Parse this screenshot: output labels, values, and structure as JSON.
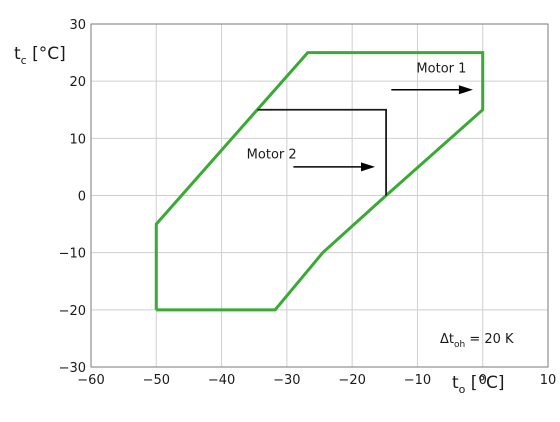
{
  "chart_data": {
    "type": "line",
    "xlim": [
      -60,
      10
    ],
    "ylim": [
      -30,
      30
    ],
    "x_ticks": [
      -60,
      -50,
      -40,
      -30,
      -20,
      -10,
      0,
      10
    ],
    "y_ticks": [
      -30,
      -20,
      -10,
      0,
      10,
      20,
      30
    ],
    "x_tick_labels": [
      "−60",
      "−50",
      "−40",
      "−30",
      "−20",
      "−10",
      "0",
      "10"
    ],
    "y_tick_labels": [
      "−30",
      "−20",
      "−10",
      "0",
      "10",
      "20",
      "30"
    ],
    "xlabel": {
      "symbol": "t",
      "sub": "o",
      "unit": " [°C]"
    },
    "ylabel": {
      "symbol": "t",
      "sub": "c",
      "unit": " [°C]"
    },
    "grid": true,
    "series": [
      {
        "color": "#3aaa35",
        "x": [
          -50,
          -50,
          -26.8,
          0,
          0,
          -14.8,
          -24.5,
          -31.8,
          -50
        ],
        "y": [
          -20,
          -5,
          25,
          25,
          15,
          0,
          -10,
          -20,
          -20
        ]
      },
      {
        "color": "#1a1a1a",
        "x": [
          -34.5,
          -14.8,
          -14.8
        ],
        "y": [
          15,
          15,
          0
        ]
      }
    ],
    "annotations": [
      {
        "text": "Motor 1",
        "text_x": -2.5,
        "text_y": 21.5,
        "arrow_from": [
          -14,
          18.5
        ],
        "arrow_to": [
          -1.5,
          18.5
        ]
      },
      {
        "text": "Motor 2",
        "text_x": -28.5,
        "text_y": 6.5,
        "arrow_from": [
          -29,
          5
        ],
        "arrow_to": [
          -16.5,
          5
        ]
      }
    ],
    "note": {
      "prefix": "Δt",
      "sub": "oh",
      "suffix": " = 20 K"
    }
  }
}
